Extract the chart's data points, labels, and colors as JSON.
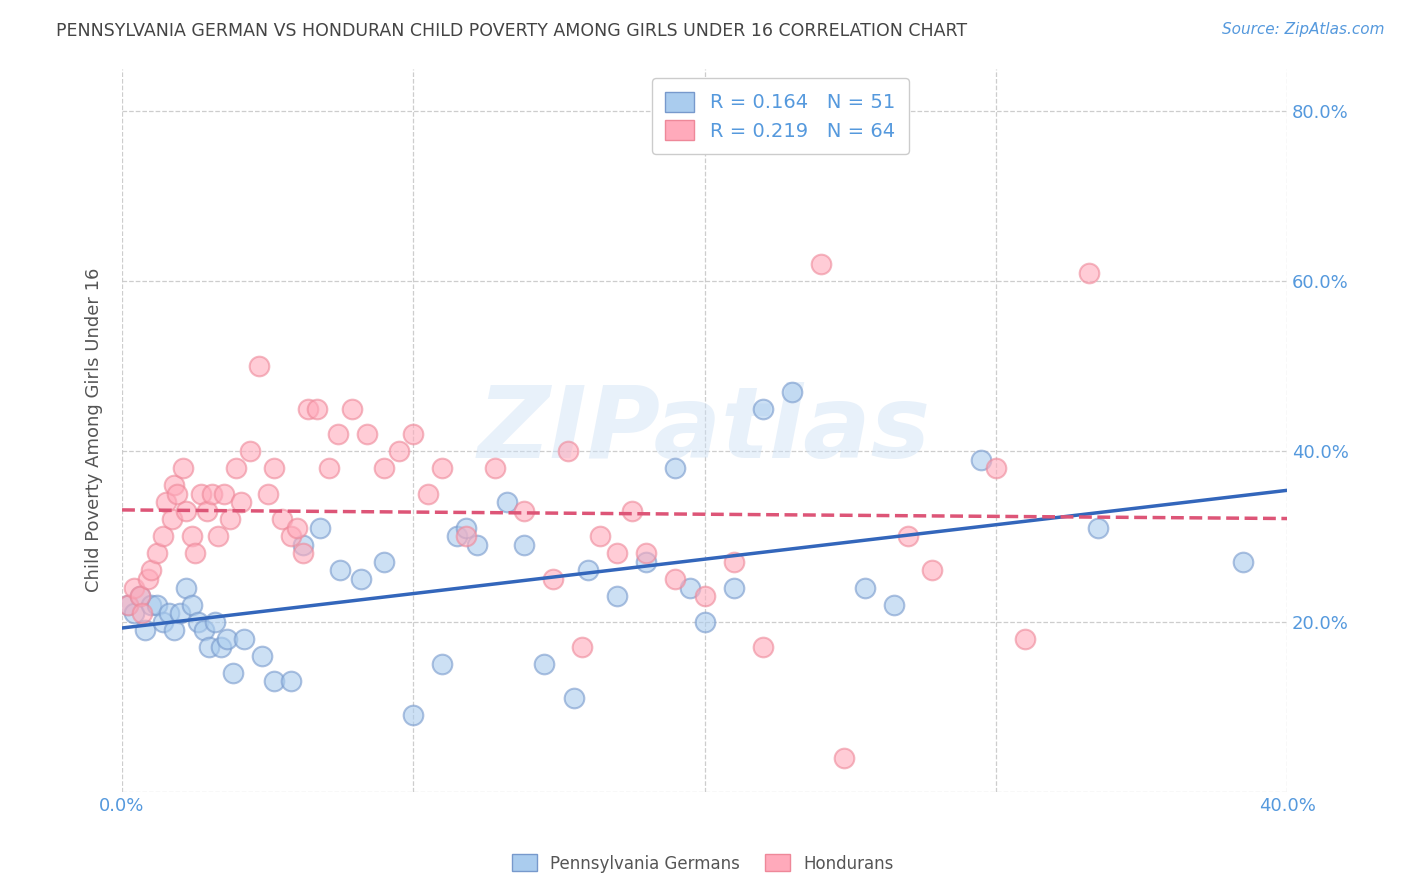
{
  "title": "PENNSYLVANIA GERMAN VS HONDURAN CHILD POVERTY AMONG GIRLS UNDER 16 CORRELATION CHART",
  "source": "Source: ZipAtlas.com",
  "ylabel": "Child Poverty Among Girls Under 16",
  "xlim": [
    0.0,
    0.4
  ],
  "ylim": [
    0.0,
    0.85
  ],
  "xticks": [
    0.0,
    0.1,
    0.2,
    0.3,
    0.4
  ],
  "yticks": [
    0.0,
    0.2,
    0.4,
    0.6,
    0.8
  ],
  "xticklabels": [
    "0.0%",
    "",
    "",
    "",
    "40.0%"
  ],
  "yticklabels": [
    "",
    "20.0%",
    "40.0%",
    "60.0%",
    "80.0%"
  ],
  "background_color": "#ffffff",
  "grid_color": "#c8c8c8",
  "title_color": "#444444",
  "blue_scatter_color": "#aaccee",
  "blue_edge_color": "#7799cc",
  "pink_scatter_color": "#ffaabb",
  "pink_edge_color": "#ee8899",
  "blue_line_color": "#3366bb",
  "pink_line_color": "#dd5577",
  "tick_label_color": "#5599dd",
  "legend_R_blue": "0.164",
  "legend_N_blue": "51",
  "legend_R_pink": "0.219",
  "legend_N_pink": "64",
  "watermark": "ZIPatlas",
  "legend_label_blue": "Pennsylvania Germans",
  "legend_label_pink": "Hondurans",
  "blue_x": [
    0.002,
    0.004,
    0.006,
    0.008,
    0.01,
    0.012,
    0.014,
    0.016,
    0.018,
    0.02,
    0.022,
    0.024,
    0.026,
    0.028,
    0.03,
    0.032,
    0.034,
    0.036,
    0.038,
    0.042,
    0.048,
    0.052,
    0.058,
    0.062,
    0.068,
    0.075,
    0.082,
    0.09,
    0.1,
    0.11,
    0.115,
    0.118,
    0.122,
    0.132,
    0.138,
    0.145,
    0.155,
    0.16,
    0.17,
    0.18,
    0.19,
    0.195,
    0.2,
    0.21,
    0.22,
    0.23,
    0.255,
    0.265,
    0.295,
    0.335,
    0.385
  ],
  "blue_y": [
    0.22,
    0.21,
    0.23,
    0.19,
    0.22,
    0.22,
    0.2,
    0.21,
    0.19,
    0.21,
    0.24,
    0.22,
    0.2,
    0.19,
    0.17,
    0.2,
    0.17,
    0.18,
    0.14,
    0.18,
    0.16,
    0.13,
    0.13,
    0.29,
    0.31,
    0.26,
    0.25,
    0.27,
    0.09,
    0.15,
    0.3,
    0.31,
    0.29,
    0.34,
    0.29,
    0.15,
    0.11,
    0.26,
    0.23,
    0.27,
    0.38,
    0.24,
    0.2,
    0.24,
    0.45,
    0.47,
    0.24,
    0.22,
    0.39,
    0.31,
    0.27
  ],
  "pink_x": [
    0.002,
    0.004,
    0.006,
    0.007,
    0.009,
    0.01,
    0.012,
    0.014,
    0.015,
    0.017,
    0.018,
    0.019,
    0.021,
    0.022,
    0.024,
    0.025,
    0.027,
    0.029,
    0.031,
    0.033,
    0.035,
    0.037,
    0.039,
    0.041,
    0.044,
    0.047,
    0.05,
    0.052,
    0.055,
    0.058,
    0.06,
    0.062,
    0.064,
    0.067,
    0.071,
    0.074,
    0.079,
    0.084,
    0.09,
    0.095,
    0.1,
    0.105,
    0.11,
    0.118,
    0.128,
    0.138,
    0.148,
    0.153,
    0.158,
    0.164,
    0.17,
    0.175,
    0.18,
    0.19,
    0.2,
    0.21,
    0.22,
    0.24,
    0.248,
    0.27,
    0.278,
    0.3,
    0.31,
    0.332
  ],
  "pink_y": [
    0.22,
    0.24,
    0.23,
    0.21,
    0.25,
    0.26,
    0.28,
    0.3,
    0.34,
    0.32,
    0.36,
    0.35,
    0.38,
    0.33,
    0.3,
    0.28,
    0.35,
    0.33,
    0.35,
    0.3,
    0.35,
    0.32,
    0.38,
    0.34,
    0.4,
    0.5,
    0.35,
    0.38,
    0.32,
    0.3,
    0.31,
    0.28,
    0.45,
    0.45,
    0.38,
    0.42,
    0.45,
    0.42,
    0.38,
    0.4,
    0.42,
    0.35,
    0.38,
    0.3,
    0.38,
    0.33,
    0.25,
    0.4,
    0.17,
    0.3,
    0.28,
    0.33,
    0.28,
    0.25,
    0.23,
    0.27,
    0.17,
    0.62,
    0.04,
    0.3,
    0.26,
    0.38,
    0.18,
    0.61
  ]
}
